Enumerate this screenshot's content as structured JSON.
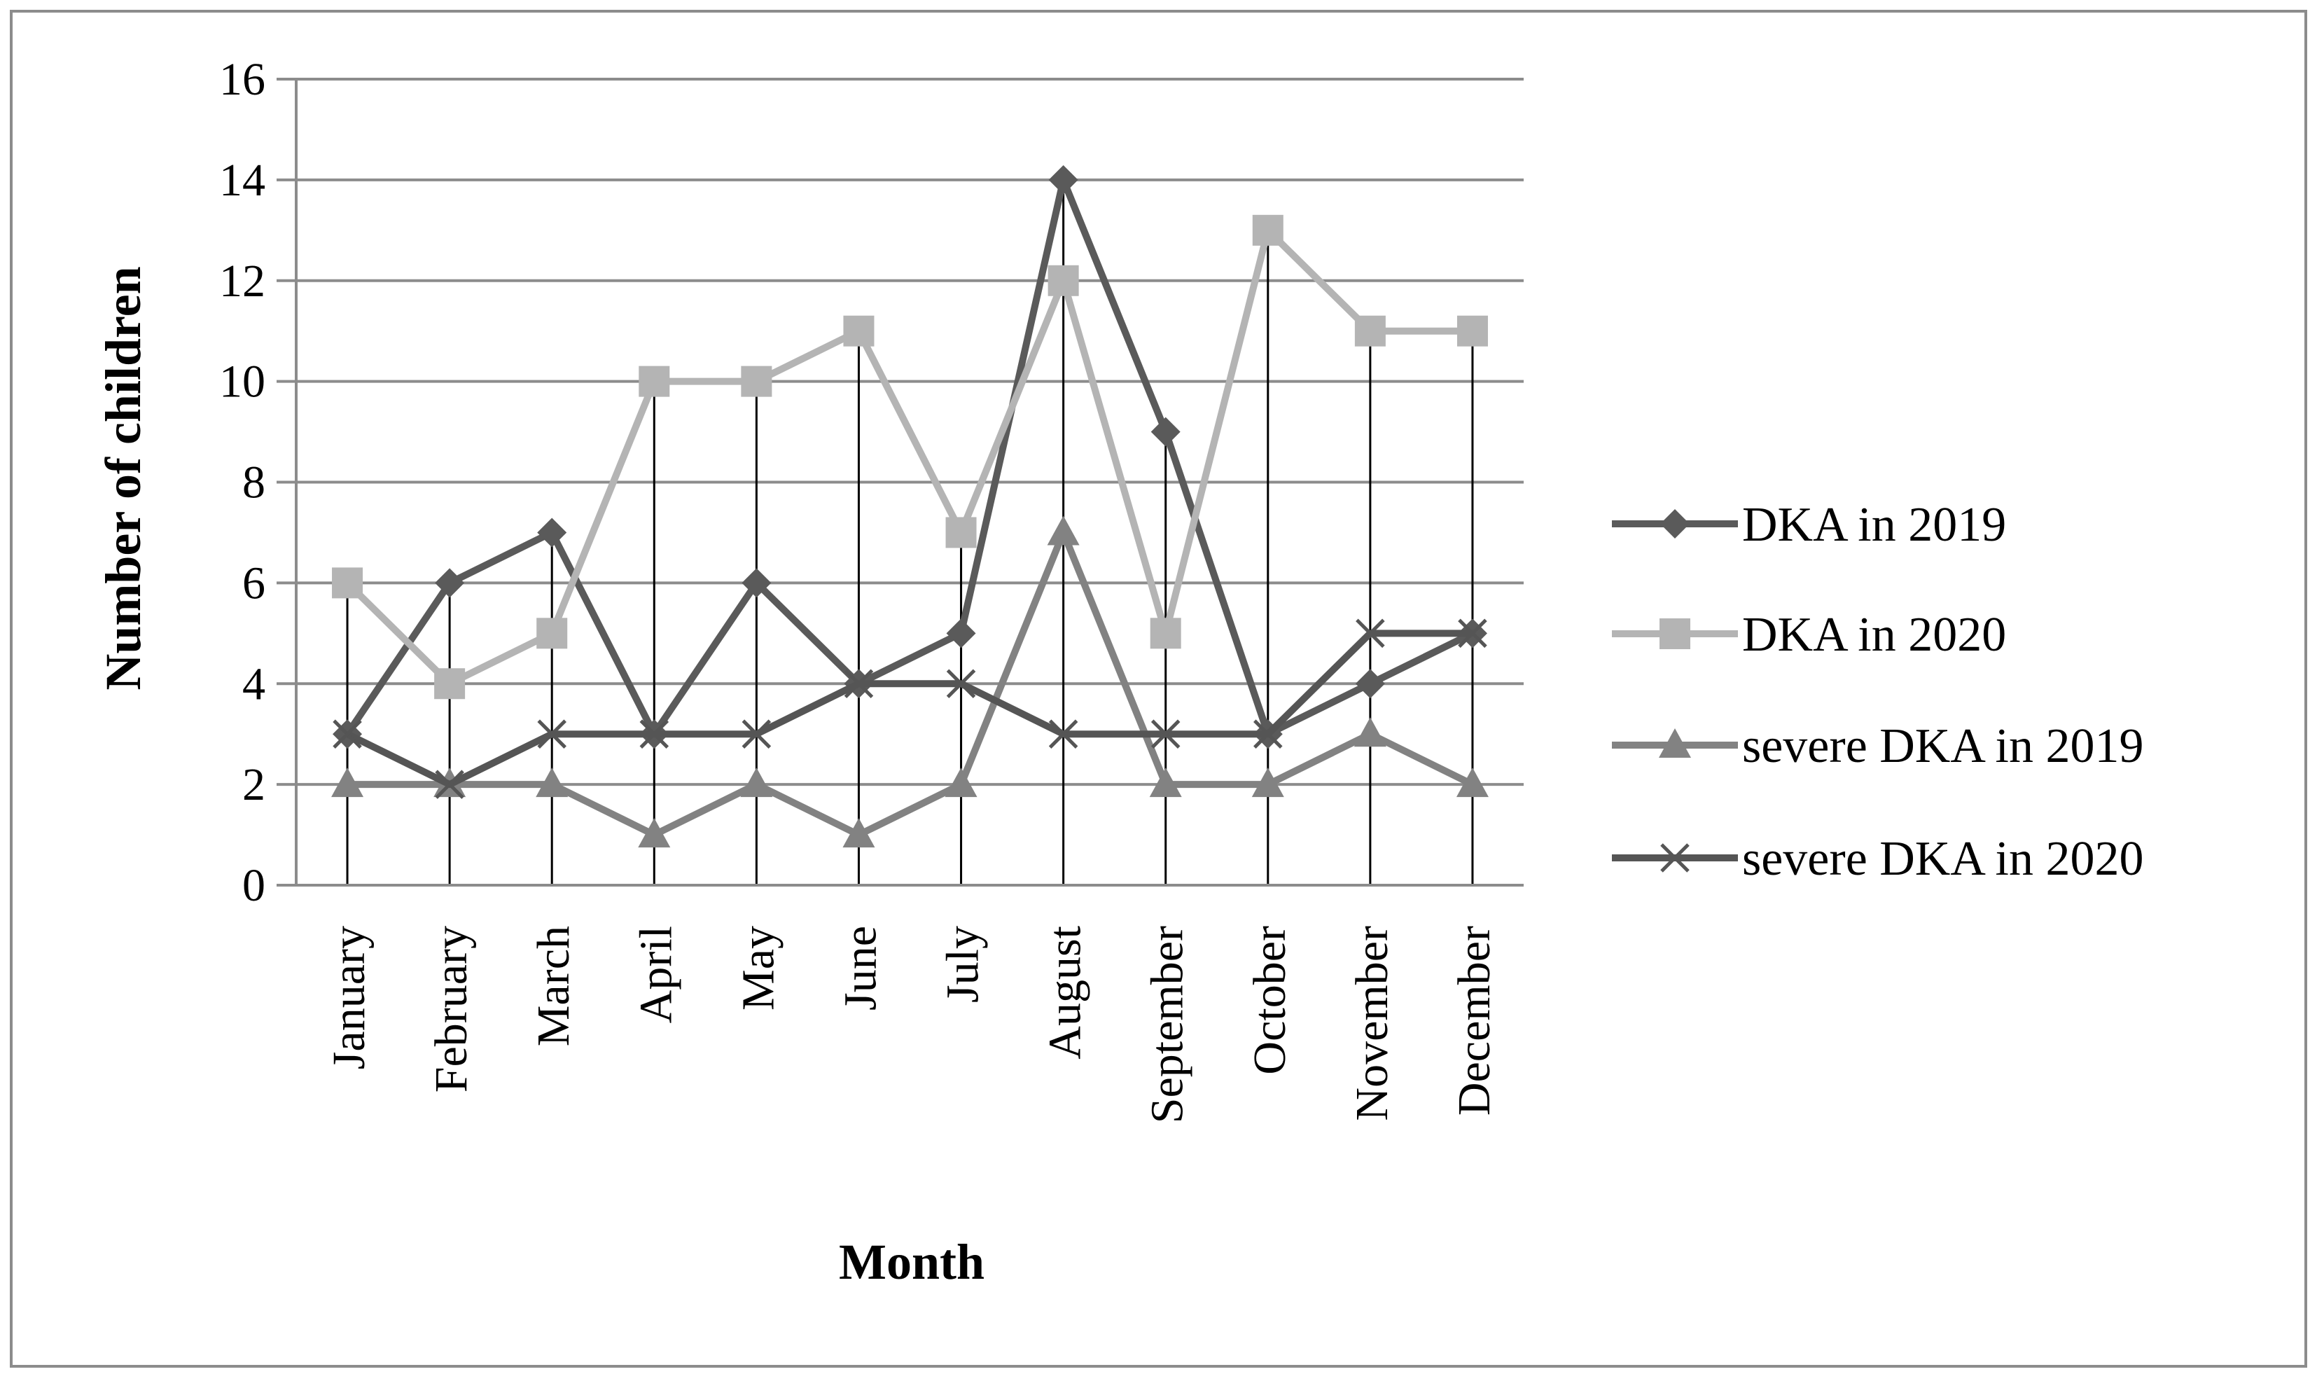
{
  "chart_data": {
    "type": "line",
    "title": "",
    "xlabel": "Month",
    "ylabel": "Number of children",
    "ylim": [
      0,
      16
    ],
    "yticks": [
      "0",
      "2",
      "4",
      "6",
      "8",
      "10",
      "12",
      "14",
      "16"
    ],
    "categories": [
      "January",
      "February",
      "March",
      "April",
      "May",
      "June",
      "July",
      "August",
      "September",
      "October",
      "November",
      "December"
    ],
    "grid": true,
    "legend_position": "right",
    "drop_lines": true,
    "series": [
      {
        "name": "DKA in 2019",
        "marker": "diamond",
        "color": "#5a5a5a",
        "values": [
          3,
          6,
          7,
          3,
          6,
          4,
          5,
          14,
          9,
          3,
          4,
          5
        ]
      },
      {
        "name": "DKA in 2020",
        "marker": "square",
        "color": "#b4b4b4",
        "values": [
          6,
          4,
          5,
          10,
          10,
          11,
          7,
          12,
          5,
          13,
          11,
          11
        ]
      },
      {
        "name": "severe DKA in 2019",
        "marker": "triangle",
        "color": "#828282",
        "values": [
          2,
          2,
          2,
          1,
          2,
          1,
          2,
          7,
          2,
          2,
          3,
          2
        ]
      },
      {
        "name": "severe DKA in 2020",
        "marker": "x",
        "color": "#555555",
        "values": [
          3,
          2,
          3,
          3,
          3,
          4,
          4,
          3,
          3,
          3,
          5,
          5
        ]
      }
    ]
  }
}
